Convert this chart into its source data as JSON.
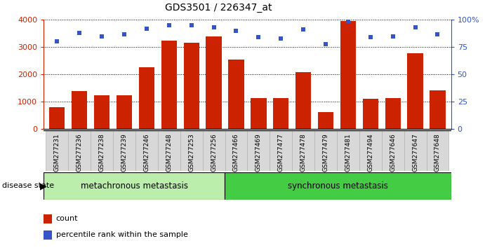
{
  "title": "GDS3501 / 226347_at",
  "samples": [
    "GSM277231",
    "GSM277236",
    "GSM277238",
    "GSM277239",
    "GSM277246",
    "GSM277248",
    "GSM277253",
    "GSM277256",
    "GSM277466",
    "GSM277469",
    "GSM277477",
    "GSM277478",
    "GSM277479",
    "GSM277481",
    "GSM277494",
    "GSM277646",
    "GSM277647",
    "GSM277648"
  ],
  "counts": [
    800,
    1380,
    1230,
    1230,
    2250,
    3230,
    3160,
    3380,
    2550,
    1130,
    1120,
    2070,
    620,
    3950,
    1110,
    1120,
    2770,
    1420
  ],
  "percentiles": [
    80,
    88,
    85,
    87,
    92,
    95,
    95,
    93,
    90,
    84,
    83,
    91,
    78,
    99,
    84,
    85,
    93,
    87
  ],
  "group1_label": "metachronous metastasis",
  "group2_label": "synchronous metastasis",
  "group1_count": 8,
  "group2_count": 10,
  "bar_color": "#cc2200",
  "dot_color": "#3355cc",
  "group1_bg": "#bbeeaa",
  "group2_bg": "#44cc44",
  "tick_bg": "#d8d8d8",
  "ylim_left": [
    0,
    4000
  ],
  "ylim_right": [
    0,
    100
  ],
  "yticks_left": [
    0,
    1000,
    2000,
    3000,
    4000
  ],
  "yticks_right": [
    0,
    25,
    50,
    75,
    100
  ],
  "legend_count_label": "count",
  "legend_pct_label": "percentile rank within the sample"
}
